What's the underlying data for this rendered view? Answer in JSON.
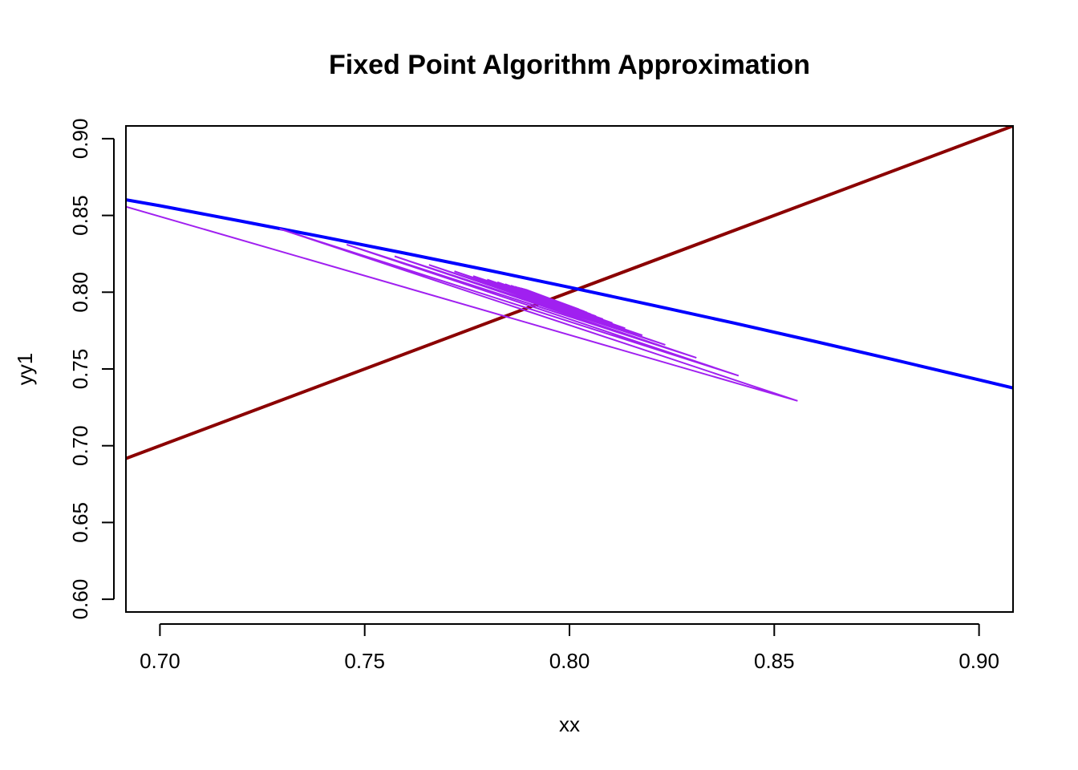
{
  "chart_data": {
    "type": "line",
    "title": "Fixed Point Algorithm Approximation",
    "xlabel": "xx",
    "ylabel": "yy1",
    "xlim": [
      0.6917,
      0.9083
    ],
    "ylim": [
      0.5917,
      0.9083
    ],
    "xticks": [
      0.7,
      0.75,
      0.8,
      0.85,
      0.9
    ],
    "xtick_labels": [
      "0.70",
      "0.75",
      "0.80",
      "0.85",
      "0.90"
    ],
    "yticks": [
      0.6,
      0.65,
      0.7,
      0.75,
      0.8,
      0.85,
      0.9
    ],
    "ytick_labels": [
      "0.60",
      "0.65",
      "0.70",
      "0.75",
      "0.80",
      "0.85",
      "0.90"
    ],
    "grid": false,
    "series": [
      {
        "color": "#8b0000",
        "x": [
          0.6917,
          0.9083
        ],
        "y": [
          0.6917,
          0.9083
        ]
      },
      {
        "color": "#0000ff",
        "x": [
          0.6917,
          0.7,
          0.72,
          0.74,
          0.76,
          0.78,
          0.8,
          0.82,
          0.84,
          0.86,
          0.88,
          0.9,
          0.9083
        ],
        "y": [
          0.8602,
          0.8563,
          0.8462,
          0.8359,
          0.8253,
          0.8144,
          0.8032,
          0.7917,
          0.78,
          0.7679,
          0.7555,
          0.7429,
          0.7376
        ]
      }
    ],
    "cobweb": {
      "color": "#a020f0",
      "x": [
        0.6917,
        0.8557,
        0.7292,
        0.8413,
        0.7456,
        0.831,
        0.7573,
        0.8234,
        0.7657,
        0.8178,
        0.7719,
        0.8136,
        0.7765,
        0.8105,
        0.7799,
        0.8082,
        0.7824,
        0.8065,
        0.7843,
        0.8052,
        0.7857,
        0.8043,
        0.7867,
        0.8036,
        0.7875,
        0.803,
        0.7881,
        0.8026,
        0.7885,
        0.8023,
        0.7889,
        0.802,
        0.7891,
        0.8018,
        0.7893,
        0.8017,
        0.7894,
        0.8016,
        0.7895,
        0.8015,
        0.7896
      ],
      "y": [
        0.8557,
        0.7292,
        0.8413,
        0.7456,
        0.831,
        0.7573,
        0.8234,
        0.7657,
        0.8178,
        0.7719,
        0.8136,
        0.7765,
        0.8105,
        0.7799,
        0.8082,
        0.7824,
        0.8065,
        0.7843,
        0.8052,
        0.7857,
        0.8043,
        0.7867,
        0.8036,
        0.7875,
        0.803,
        0.7881,
        0.8026,
        0.7885,
        0.8023,
        0.7889,
        0.802,
        0.7891,
        0.8018,
        0.7893,
        0.8017,
        0.7894,
        0.8016,
        0.7895,
        0.8015,
        0.7896,
        0.8014
      ]
    }
  }
}
